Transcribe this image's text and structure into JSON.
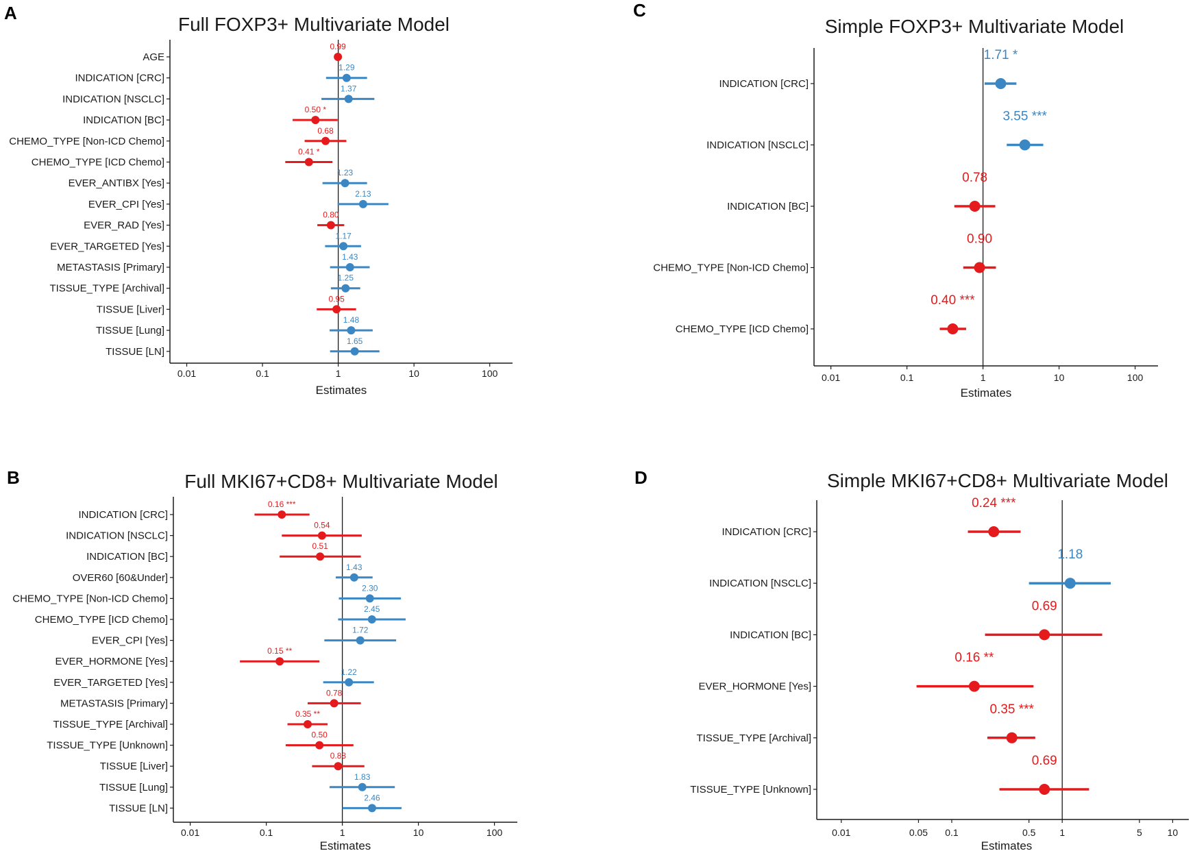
{
  "colors": {
    "up": "#3a87c4",
    "down": "#e41a1c",
    "axis": "#1a1a1a"
  },
  "chart_data": [
    {
      "panel": "A",
      "type": "forest",
      "title": "Full FOXP3+ Multivariate Model",
      "xlabel": "Estimates",
      "xscale": "log10",
      "xlim": [
        0.006,
        200
      ],
      "xticks": [
        0.01,
        0.1,
        1,
        10,
        100
      ],
      "xtick_labels": [
        "0.01",
        "0.1",
        "1",
        "10",
        "100"
      ],
      "rows": [
        {
          "term": "AGE",
          "estimate": 0.99,
          "lo": 0.97,
          "hi": 1.01,
          "label": "0.99"
        },
        {
          "term": "INDICATION [CRC]",
          "estimate": 1.29,
          "lo": 0.69,
          "hi": 2.4,
          "label": "1.29"
        },
        {
          "term": "INDICATION [NSCLC]",
          "estimate": 1.37,
          "lo": 0.6,
          "hi": 3.0,
          "label": "1.37"
        },
        {
          "term": "INDICATION [BC]",
          "estimate": 0.5,
          "lo": 0.25,
          "hi": 0.98,
          "label": "0.50 *"
        },
        {
          "term": "CHEMO_TYPE [Non-ICD Chemo]",
          "estimate": 0.68,
          "lo": 0.36,
          "hi": 1.28,
          "label": "0.68"
        },
        {
          "term": "CHEMO_TYPE [ICD Chemo]",
          "estimate": 0.41,
          "lo": 0.2,
          "hi": 0.84,
          "label": "0.41 *"
        },
        {
          "term": "EVER_ANTIBX [Yes]",
          "estimate": 1.23,
          "lo": 0.62,
          "hi": 2.4,
          "label": "1.23"
        },
        {
          "term": "EVER_CPI [Yes]",
          "estimate": 2.13,
          "lo": 0.98,
          "hi": 4.6,
          "label": "2.13"
        },
        {
          "term": "EVER_RAD [Yes]",
          "estimate": 0.8,
          "lo": 0.53,
          "hi": 1.2,
          "label": "0.80"
        },
        {
          "term": "EVER_TARGETED [Yes]",
          "estimate": 1.17,
          "lo": 0.67,
          "hi": 2.0,
          "label": "1.17"
        },
        {
          "term": "METASTASIS [Primary]",
          "estimate": 1.43,
          "lo": 0.78,
          "hi": 2.6,
          "label": "1.43"
        },
        {
          "term": "TISSUE_TYPE [Archival]",
          "estimate": 1.25,
          "lo": 0.8,
          "hi": 1.95,
          "label": "1.25"
        },
        {
          "term": "TISSUE [Liver]",
          "estimate": 0.95,
          "lo": 0.52,
          "hi": 1.72,
          "label": "0.95"
        },
        {
          "term": "TISSUE [Lung]",
          "estimate": 1.48,
          "lo": 0.77,
          "hi": 2.85,
          "label": "1.48"
        },
        {
          "term": "TISSUE [LN]",
          "estimate": 1.65,
          "lo": 0.78,
          "hi": 3.5,
          "label": "1.65"
        }
      ]
    },
    {
      "panel": "B",
      "type": "forest",
      "title": "Full MKI67+CD8+ Multivariate Model",
      "xlabel": "Estimates",
      "xscale": "log10",
      "xlim": [
        0.006,
        200
      ],
      "xticks": [
        0.01,
        0.1,
        1,
        10,
        100
      ],
      "xtick_labels": [
        "0.01",
        "0.1",
        "1",
        "10",
        "100"
      ],
      "rows": [
        {
          "term": "INDICATION [CRC]",
          "estimate": 0.16,
          "lo": 0.07,
          "hi": 0.37,
          "label": "0.16 ***"
        },
        {
          "term": "INDICATION [NSCLC]",
          "estimate": 0.54,
          "lo": 0.16,
          "hi": 1.8,
          "label": "0.54"
        },
        {
          "term": "INDICATION [BC]",
          "estimate": 0.51,
          "lo": 0.15,
          "hi": 1.75,
          "label": "0.51"
        },
        {
          "term": "OVER60 [60&Under]",
          "estimate": 1.43,
          "lo": 0.82,
          "hi": 2.5,
          "label": "1.43"
        },
        {
          "term": "CHEMO_TYPE [Non-ICD Chemo]",
          "estimate": 2.3,
          "lo": 0.9,
          "hi": 5.9,
          "label": "2.30"
        },
        {
          "term": "CHEMO_TYPE [ICD Chemo]",
          "estimate": 2.45,
          "lo": 0.88,
          "hi": 6.8,
          "label": "2.45"
        },
        {
          "term": "EVER_CPI [Yes]",
          "estimate": 1.72,
          "lo": 0.58,
          "hi": 5.1,
          "label": "1.72"
        },
        {
          "term": "EVER_HORMONE [Yes]",
          "estimate": 0.15,
          "lo": 0.045,
          "hi": 0.5,
          "label": "0.15 **"
        },
        {
          "term": "EVER_TARGETED [Yes]",
          "estimate": 1.22,
          "lo": 0.56,
          "hi": 2.6,
          "label": "1.22"
        },
        {
          "term": "METASTASIS [Primary]",
          "estimate": 0.78,
          "lo": 0.35,
          "hi": 1.75,
          "label": "0.78"
        },
        {
          "term": "TISSUE_TYPE [Archival]",
          "estimate": 0.35,
          "lo": 0.19,
          "hi": 0.64,
          "label": "0.35 **"
        },
        {
          "term": "TISSUE_TYPE [Unknown]",
          "estimate": 0.5,
          "lo": 0.18,
          "hi": 1.4,
          "label": "0.50"
        },
        {
          "term": "TISSUE [Liver]",
          "estimate": 0.88,
          "lo": 0.4,
          "hi": 1.95,
          "label": "0.88"
        },
        {
          "term": "TISSUE [Lung]",
          "estimate": 1.83,
          "lo": 0.68,
          "hi": 4.9,
          "label": "1.83"
        },
        {
          "term": "TISSUE [LN]",
          "estimate": 2.46,
          "lo": 1.0,
          "hi": 6.0,
          "label": "2.46"
        }
      ]
    },
    {
      "panel": "C",
      "type": "forest",
      "title": "Simple FOXP3+ Multivariate Model",
      "xlabel": "Estimates",
      "xscale": "log10",
      "xlim": [
        0.006,
        200
      ],
      "xticks": [
        0.01,
        0.1,
        1,
        10,
        100
      ],
      "xtick_labels": [
        "0.01",
        "0.1",
        "1",
        "10",
        "100"
      ],
      "rows": [
        {
          "term": "INDICATION [CRC]",
          "estimate": 1.71,
          "lo": 1.05,
          "hi": 2.75,
          "label": "1.71 *"
        },
        {
          "term": "INDICATION [NSCLC]",
          "estimate": 3.55,
          "lo": 2.05,
          "hi": 6.2,
          "label": "3.55 ***"
        },
        {
          "term": "INDICATION [BC]",
          "estimate": 0.78,
          "lo": 0.42,
          "hi": 1.45,
          "label": "0.78"
        },
        {
          "term": "CHEMO_TYPE [Non-ICD Chemo]",
          "estimate": 0.9,
          "lo": 0.55,
          "hi": 1.48,
          "label": "0.90"
        },
        {
          "term": "CHEMO_TYPE [ICD Chemo]",
          "estimate": 0.4,
          "lo": 0.27,
          "hi": 0.6,
          "label": "0.40 ***"
        }
      ]
    },
    {
      "panel": "D",
      "type": "forest",
      "title": "Simple MKI67+CD8+ Multivariate Model",
      "xlabel": "Estimates",
      "xscale": "log10",
      "xlim": [
        0.006,
        14
      ],
      "xticks": [
        0.01,
        0.05,
        0.1,
        0.5,
        1,
        5,
        10
      ],
      "xtick_labels": [
        "0.01",
        "0.05",
        "0.1",
        "0.5",
        "1",
        "5",
        "10"
      ],
      "rows": [
        {
          "term": "INDICATION [CRC]",
          "estimate": 0.24,
          "lo": 0.14,
          "hi": 0.42,
          "label": "0.24 ***"
        },
        {
          "term": "INDICATION [NSCLC]",
          "estimate": 1.18,
          "lo": 0.5,
          "hi": 2.75,
          "label": "1.18"
        },
        {
          "term": "INDICATION [BC]",
          "estimate": 0.69,
          "lo": 0.2,
          "hi": 2.3,
          "label": "0.69"
        },
        {
          "term": "EVER_HORMONE [Yes]",
          "estimate": 0.16,
          "lo": 0.048,
          "hi": 0.55,
          "label": "0.16 **"
        },
        {
          "term": "TISSUE_TYPE [Archival]",
          "estimate": 0.35,
          "lo": 0.21,
          "hi": 0.57,
          "label": "0.35 ***"
        },
        {
          "term": "TISSUE_TYPE [Unknown]",
          "estimate": 0.69,
          "lo": 0.27,
          "hi": 1.75,
          "label": "0.69"
        }
      ]
    }
  ]
}
